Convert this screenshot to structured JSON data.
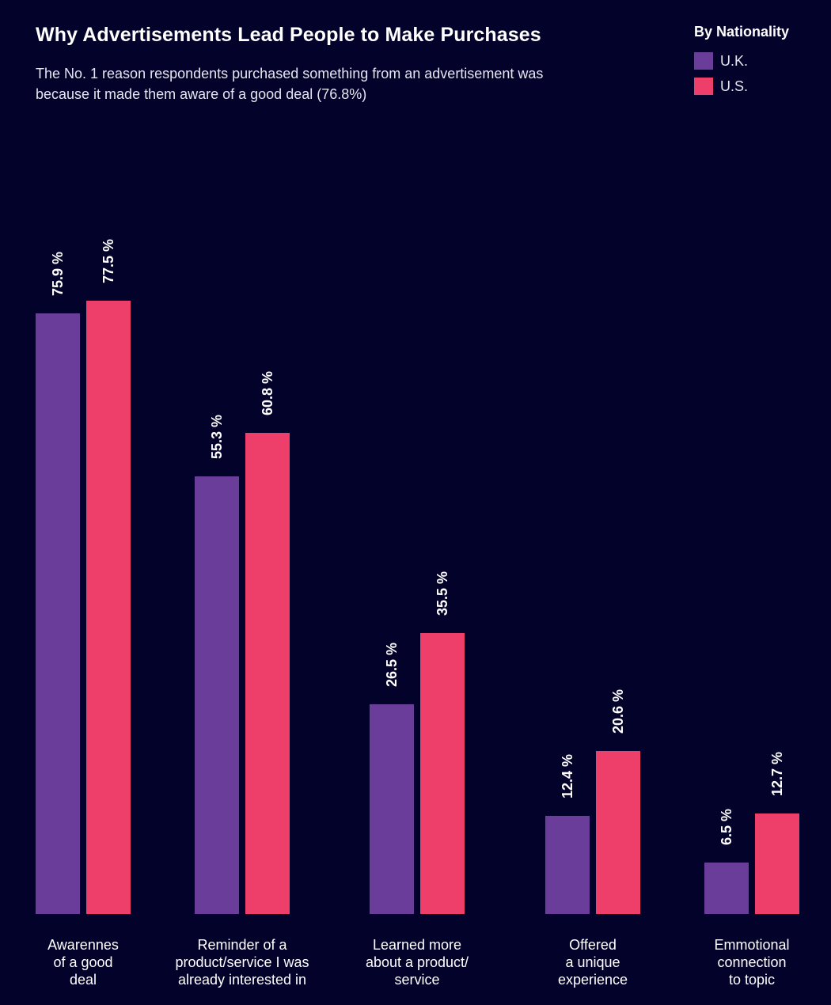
{
  "chart_data": {
    "type": "bar",
    "title": "Why Advertisements Lead People to Make Purchases",
    "subtitle": "The No. 1 reason respondents purchased something from an advertisement was because it made them aware of a good deal (76.8%)",
    "legend_title": "By Nationality",
    "legend_position": "top-right",
    "categories": [
      "Awarennes\nof a good\ndeal",
      "Reminder of a\nproduct/service I was\nalready interested in",
      "Learned more\nabout a product/\nservice",
      "Offered\na unique\nexperience",
      "Emmotional\nconnection\nto topic"
    ],
    "series": [
      {
        "name": "U.K.",
        "color": "#6a3d9a",
        "values": [
          75.9,
          55.3,
          26.5,
          12.4,
          6.5
        ],
        "labels": [
          "75.9 %",
          "55.3 %",
          "26.5 %",
          "12.4 %",
          "6.5 %"
        ]
      },
      {
        "name": "U.S.",
        "color": "#ee3f6b",
        "values": [
          77.5,
          60.8,
          35.5,
          20.6,
          12.7
        ],
        "labels": [
          "77.5 %",
          "60.8 %",
          "35.5 %",
          "20.6 %",
          "12.7 %"
        ]
      }
    ],
    "xlabel": "",
    "ylabel": "",
    "grid": false
  }
}
